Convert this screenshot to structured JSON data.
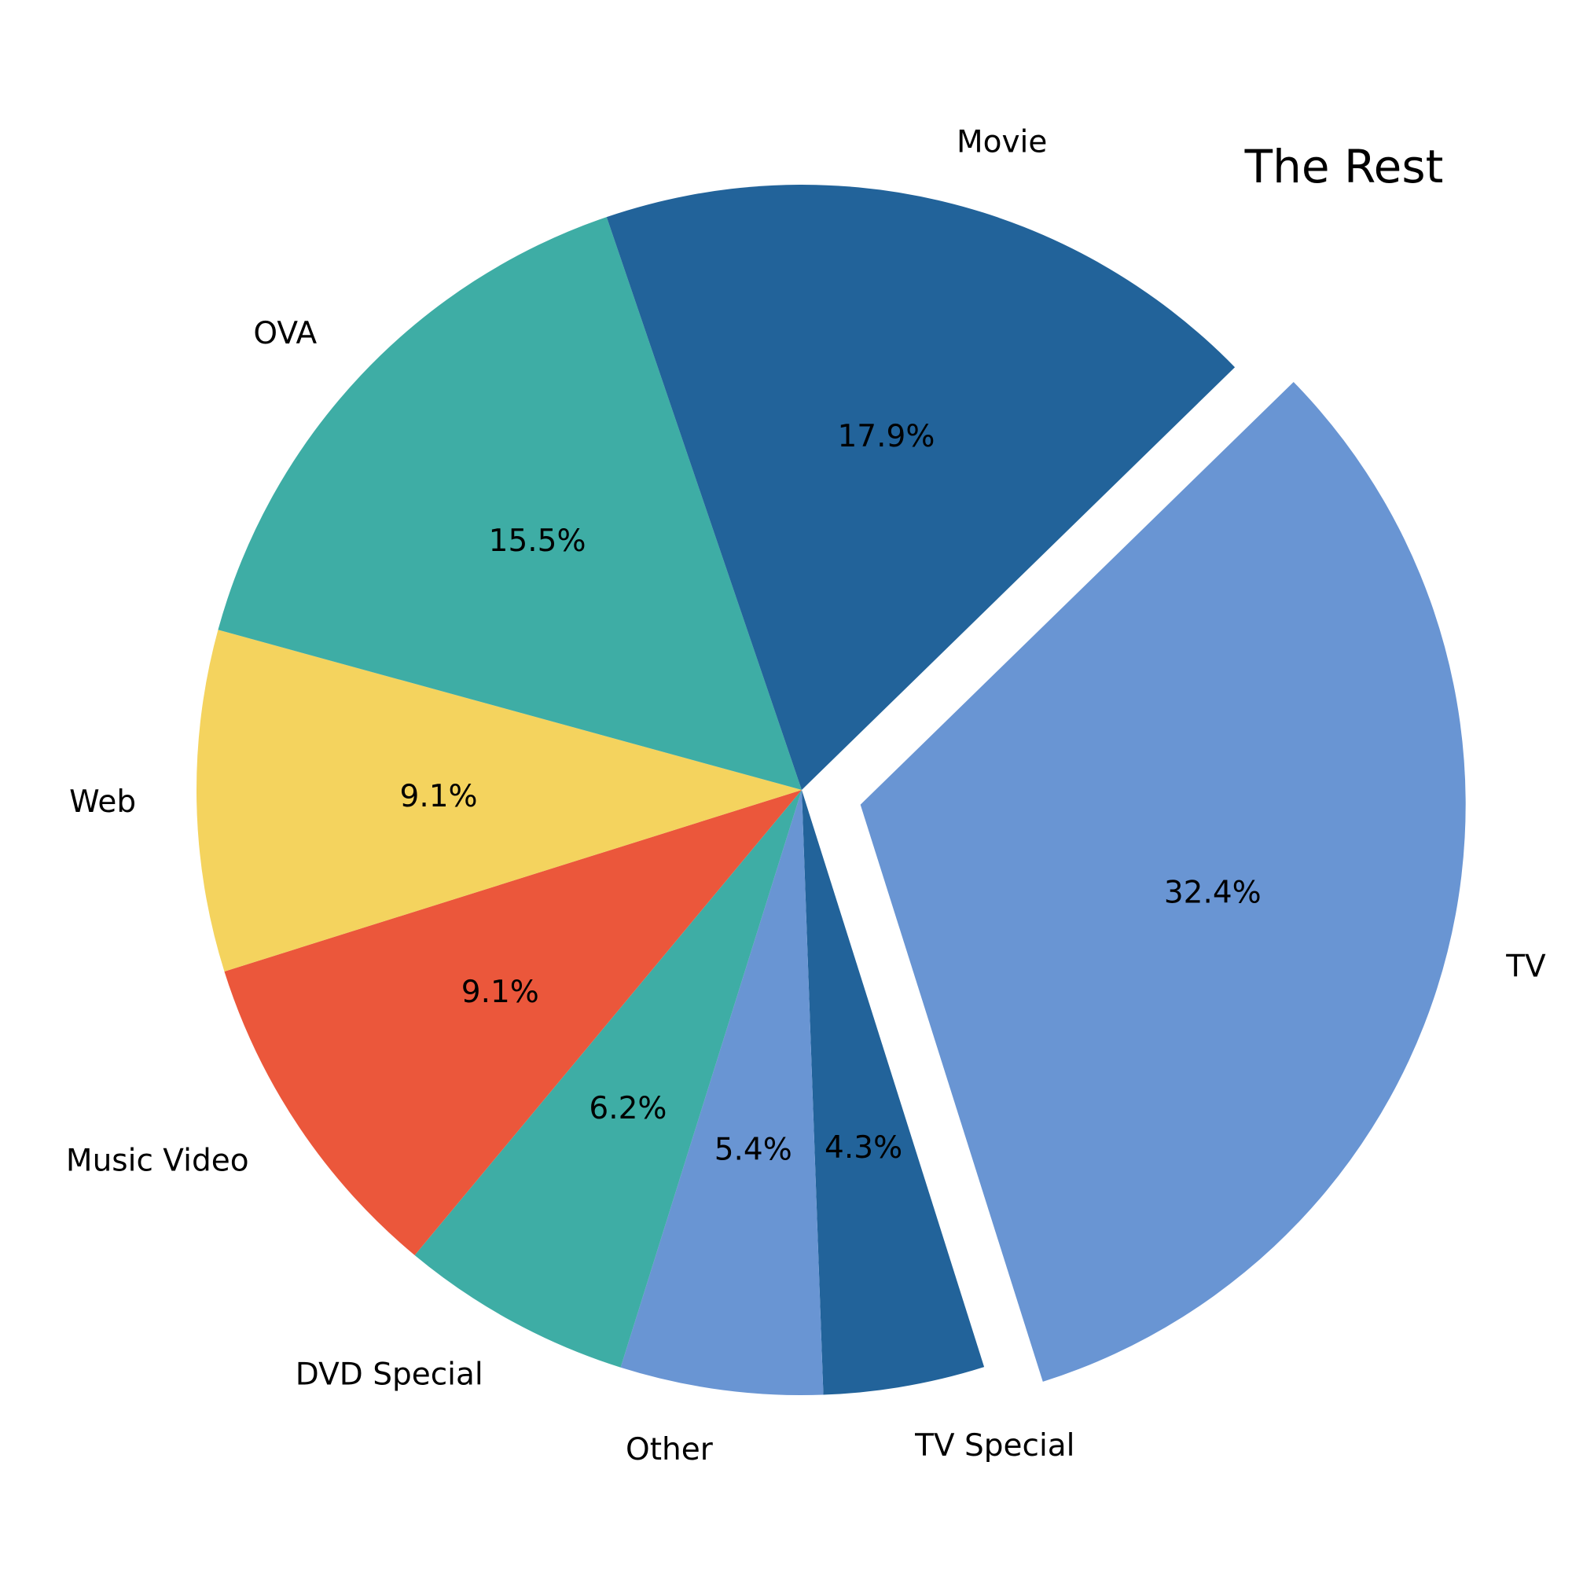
{
  "chart_data": {
    "type": "pie",
    "title": "The Rest",
    "start_angle_deg": -44.3,
    "direction": "clockwise",
    "exploded": "TV",
    "slices": [
      {
        "label": "TV",
        "percent": 32.4,
        "percent_label": "32.4%",
        "color": "#6995D3",
        "explode": true
      },
      {
        "label": "TV Special",
        "percent": 4.3,
        "percent_label": "4.3%",
        "color": "#22639A",
        "explode": false
      },
      {
        "label": "Other",
        "percent": 5.4,
        "percent_label": "5.4%",
        "color": "#6995D3",
        "explode": false
      },
      {
        "label": "DVD Special",
        "percent": 6.2,
        "percent_label": "6.2%",
        "color": "#3EADA5",
        "explode": false
      },
      {
        "label": "Music Video",
        "percent": 9.1,
        "percent_label": "9.1%",
        "color": "#EB573B",
        "explode": false
      },
      {
        "label": "Web",
        "percent": 9.1,
        "percent_label": "9.1%",
        "color": "#F4D35E",
        "explode": false
      },
      {
        "label": "OVA",
        "percent": 15.5,
        "percent_label": "15.5%",
        "color": "#3EADA5",
        "explode": false
      },
      {
        "label": "Movie",
        "percent": 17.9,
        "percent_label": "17.9%",
        "color": "#22639A",
        "explode": false
      }
    ]
  }
}
